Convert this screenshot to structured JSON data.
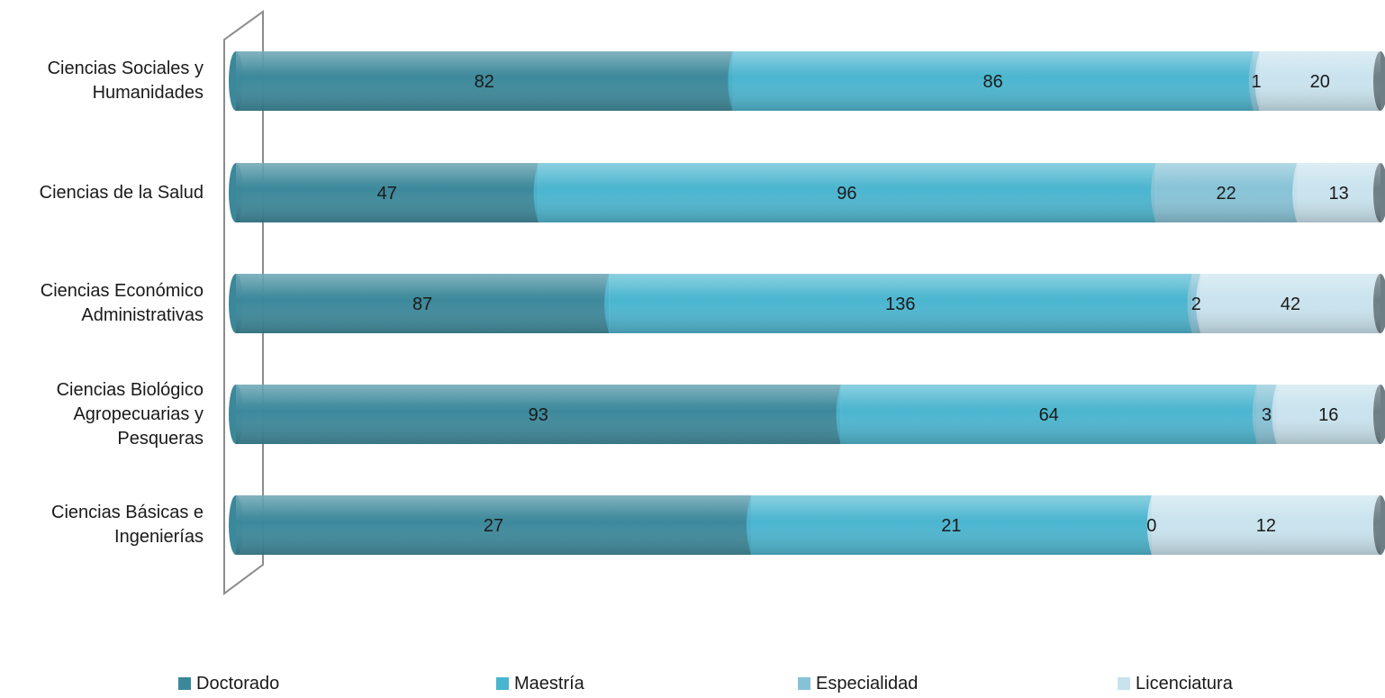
{
  "chart_data": {
    "type": "bar",
    "orientation": "horizontal",
    "stacked": true,
    "normalized_100_percent": true,
    "categories": [
      "Ciencias Sociales y Humanidades",
      "Ciencias de la Salud",
      "Ciencias Económico Administrativas",
      "Ciencias Biológico Agropecuarias y Pesqueras",
      "Ciencias Básicas e Ingenierías"
    ],
    "category_lines": [
      [
        "Ciencias Sociales y",
        "Humanidades"
      ],
      [
        "Ciencias de la Salud"
      ],
      [
        "Ciencias Económico",
        "Administrativas"
      ],
      [
        "Ciencias Biológico",
        "Agropecuarias y",
        "Pesqueras"
      ],
      [
        "Ciencias Básicas e",
        "Ingenierías"
      ]
    ],
    "series": [
      {
        "name": "Doctorado",
        "values": [
          82,
          47,
          87,
          93,
          27
        ],
        "color": "#3b889a"
      },
      {
        "name": "Maestría",
        "values": [
          86,
          96,
          136,
          64,
          21
        ],
        "color": "#4ab5cf"
      },
      {
        "name": "Especialidad",
        "values": [
          1,
          22,
          2,
          3,
          0
        ],
        "color": "#86c2d6"
      },
      {
        "name": "Licenciatura",
        "values": [
          20,
          13,
          42,
          16,
          12
        ],
        "color": "#c9e3ee"
      }
    ],
    "title": "",
    "xlabel": "",
    "ylabel": "",
    "data_labels": true,
    "grid": false,
    "legend_position": "bottom",
    "style": "3d-cylinder"
  }
}
